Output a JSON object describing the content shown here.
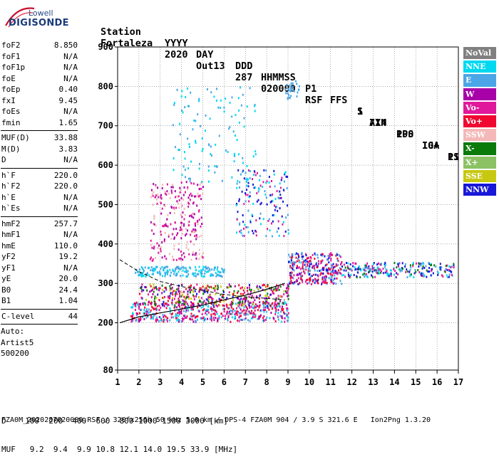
{
  "logo": {
    "line1": "Lowell",
    "line2": "DIGISONDE"
  },
  "header": {
    "row1": [
      "Station",
      "YYYY",
      "DAY",
      "DDD",
      "HHMMSS",
      "P1",
      "FFS",
      "S",
      "AXN",
      "PPS",
      "IGA",
      "PS"
    ],
    "row2": [
      "Fortaleza",
      "2020",
      "Out13",
      "287",
      "020000",
      "RSF",
      "1",
      "714",
      "100",
      "10+",
      "11"
    ]
  },
  "sidebar": {
    "group1": [
      {
        "label": "foF2",
        "value": "8.850"
      },
      {
        "label": "foF1",
        "value": "N/A"
      },
      {
        "label": "foF1p",
        "value": "N/A"
      },
      {
        "label": "foE",
        "value": "N/A"
      },
      {
        "label": "foEp",
        "value": "0.40"
      },
      {
        "label": "fxI",
        "value": "9.45"
      },
      {
        "label": "foEs",
        "value": "N/A"
      },
      {
        "label": "fmin",
        "value": "1.65"
      }
    ],
    "group2": [
      {
        "label": "MUF(D)",
        "value": "33.88"
      },
      {
        "label": "M(D)",
        "value": "3.83"
      },
      {
        "label": "D",
        "value": "N/A"
      }
    ],
    "group3": [
      {
        "label": "h`F",
        "value": "220.0"
      },
      {
        "label": "h`F2",
        "value": "220.0"
      },
      {
        "label": "h`E",
        "value": "N/A"
      },
      {
        "label": "h`Es",
        "value": "N/A"
      }
    ],
    "group4": [
      {
        "label": "hmF2",
        "value": "257.7"
      },
      {
        "label": "hmF1",
        "value": "N/A"
      },
      {
        "label": "hmE",
        "value": "110.0"
      },
      {
        "label": "yF2",
        "value": "19.2"
      },
      {
        "label": "yF1",
        "value": "N/A"
      },
      {
        "label": "yE",
        "value": "20.0"
      },
      {
        "label": "B0",
        "value": "24.4"
      },
      {
        "label": "B1",
        "value": "1.04"
      }
    ],
    "clevel": {
      "label": "C-level",
      "value": "44"
    },
    "auto": [
      "Auto:",
      "Artist5",
      "500200"
    ]
  },
  "legend": [
    {
      "label": "NoVal",
      "color": "#808080"
    },
    {
      "label": "NNE",
      "color": "#00d8f0"
    },
    {
      "label": "E",
      "color": "#4aa6e6"
    },
    {
      "label": "W",
      "color": "#a800a8"
    },
    {
      "label": "Vo-",
      "color": "#e0189a"
    },
    {
      "label": "Vo+",
      "color": "#f00830"
    },
    {
      "label": "SSW",
      "color": "#f4b8b8"
    },
    {
      "label": "X-",
      "color": "#0a7a0a"
    },
    {
      "label": "X+",
      "color": "#8cc264"
    },
    {
      "label": "SSE",
      "color": "#c8c810"
    },
    {
      "label": "NNW",
      "color": "#1818d8"
    }
  ],
  "chart_data": {
    "type": "scatter",
    "xlim": [
      1,
      17
    ],
    "ylim": [
      80,
      900
    ],
    "x_ticks": [
      1,
      2,
      3,
      4,
      5,
      6,
      7,
      8,
      9,
      10,
      11,
      12,
      13,
      14,
      15,
      16,
      17
    ],
    "y_ticks": [
      80,
      200,
      300,
      400,
      500,
      600,
      700,
      800,
      900
    ],
    "grid": true,
    "legend_position": "right"
  },
  "bottom": {
    "d_row": "D    100  200  400  600  800 1000 1500 3000 [km]",
    "muf_row": "MUF   9.2  9.4  9.9 10.8 12.1 14.0 19.5 33.9 [MHz]",
    "footer": "FZA0M_2020287020000.RSF / 320fx256h 50 kHz 5.0 km / DPS-4 FZA0M 904 / 3.9 S 321.6 E   Ion2Png 1.3.20"
  }
}
